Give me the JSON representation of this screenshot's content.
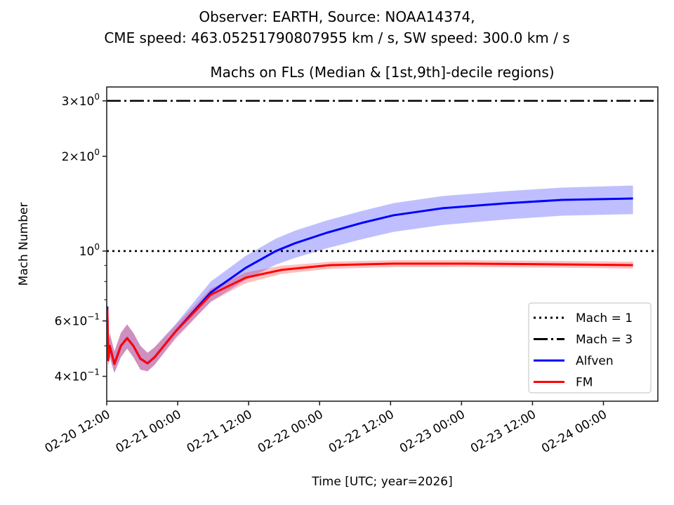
{
  "chart_data": {
    "type": "line",
    "suptitle_lines": [
      "Observer: EARTH, Source: NOAA14374,",
      "CME speed: 463.05251790807955 km / s, SW speed: 300.0 km / s"
    ],
    "title": "Machs on FLs (Median & [1st,9th]-decile regions)",
    "xlabel": "Time [UTC; year=2026]",
    "ylabel": "Mach Number",
    "yscale": "log",
    "ylim": [
      0.3335,
      3.32
    ],
    "x_units": "hours since 2026-02-20 12:00 UTC",
    "xlim": [
      0,
      93.2
    ],
    "x_ticks": [
      {
        "x": 0,
        "label": "02-20 12:00"
      },
      {
        "x": 12,
        "label": "02-21 00:00"
      },
      {
        "x": 24,
        "label": "02-21 12:00"
      },
      {
        "x": 36,
        "label": "02-22 00:00"
      },
      {
        "x": 48,
        "label": "02-22 12:00"
      },
      {
        "x": 60,
        "label": "02-23 00:00"
      },
      {
        "x": 72,
        "label": "02-23 12:00"
      },
      {
        "x": 84,
        "label": "02-24 00:00"
      }
    ],
    "y_major_ticks": [
      {
        "y": 3,
        "mant": "3",
        "exp": "0"
      },
      {
        "y": 2,
        "mant": "2",
        "exp": "0"
      },
      {
        "y": 1,
        "mant": "",
        "exp": "0"
      },
      {
        "y": 0.6,
        "mant": "6",
        "exp": "−1"
      },
      {
        "y": 0.4,
        "mant": "4",
        "exp": "−1"
      }
    ],
    "y_minor_ticks": [
      0.5,
      0.7,
      0.8,
      0.9
    ],
    "hlines": [
      {
        "name": "Mach = 1",
        "y": 1,
        "style": "dotted",
        "color": "#000000"
      },
      {
        "name": "Mach = 3",
        "y": 3,
        "style": "dashdot",
        "color": "#000000"
      }
    ],
    "series": [
      {
        "name": "Alfven",
        "color": "#0000ff",
        "band_color": "#0000ff",
        "x": [
          0.1,
          0.25,
          0.5,
          1.3,
          2.4,
          3.45,
          4.5,
          5.7,
          6.9,
          8.1,
          11.6,
          17.6,
          23.5,
          28.6,
          31.8,
          37.2,
          43.1,
          48.5,
          56.8,
          67.5,
          77.0,
          89.0
        ],
        "median": [
          0.667,
          0.45,
          0.5,
          0.438,
          0.5,
          0.529,
          0.5,
          0.455,
          0.44,
          0.46,
          0.554,
          0.739,
          0.884,
          1.0,
          1.058,
          1.143,
          1.228,
          1.299,
          1.368,
          1.418,
          1.454,
          1.469
        ],
        "p10": [
          0.62,
          0.43,
          0.46,
          0.41,
          0.46,
          0.49,
          0.46,
          0.42,
          0.415,
          0.435,
          0.53,
          0.69,
          0.81,
          0.905,
          0.95,
          1.02,
          1.09,
          1.15,
          1.21,
          1.26,
          1.295,
          1.31
        ],
        "p90": [
          0.7,
          0.5,
          0.55,
          0.48,
          0.55,
          0.585,
          0.55,
          0.5,
          0.475,
          0.495,
          0.585,
          0.8,
          0.965,
          1.095,
          1.16,
          1.25,
          1.34,
          1.42,
          1.495,
          1.55,
          1.59,
          1.615
        ]
      },
      {
        "name": "FM",
        "color": "#ff0000",
        "band_color": "#ff0000",
        "x": [
          0.1,
          0.25,
          0.5,
          1.3,
          2.4,
          3.45,
          4.5,
          5.7,
          6.9,
          8.1,
          11.6,
          17.6,
          22.3,
          23.5,
          29.5,
          31.8,
          37.8,
          48.5,
          60.3,
          77.0,
          89.0
        ],
        "median": [
          0.655,
          0.45,
          0.5,
          0.438,
          0.5,
          0.529,
          0.5,
          0.455,
          0.44,
          0.46,
          0.554,
          0.727,
          0.802,
          0.823,
          0.871,
          0.88,
          0.902,
          0.912,
          0.912,
          0.907,
          0.902
        ],
        "p10": [
          0.61,
          0.43,
          0.46,
          0.41,
          0.46,
          0.49,
          0.46,
          0.42,
          0.415,
          0.435,
          0.525,
          0.69,
          0.77,
          0.79,
          0.845,
          0.855,
          0.878,
          0.889,
          0.89,
          0.885,
          0.88
        ],
        "p90": [
          0.69,
          0.5,
          0.55,
          0.48,
          0.55,
          0.585,
          0.55,
          0.5,
          0.475,
          0.495,
          0.58,
          0.76,
          0.835,
          0.855,
          0.898,
          0.905,
          0.925,
          0.935,
          0.935,
          0.93,
          0.925
        ]
      }
    ],
    "legend": {
      "placement": "lower-right",
      "entries": [
        {
          "label": "Mach = 1",
          "style": "dotted",
          "color": "#000000"
        },
        {
          "label": "Mach = 3",
          "style": "dashdot",
          "color": "#000000"
        },
        {
          "label": "Alfven",
          "style": "solid",
          "color": "#0000ff"
        },
        {
          "label": "FM",
          "style": "solid",
          "color": "#ff0000"
        }
      ]
    },
    "grid": false
  }
}
